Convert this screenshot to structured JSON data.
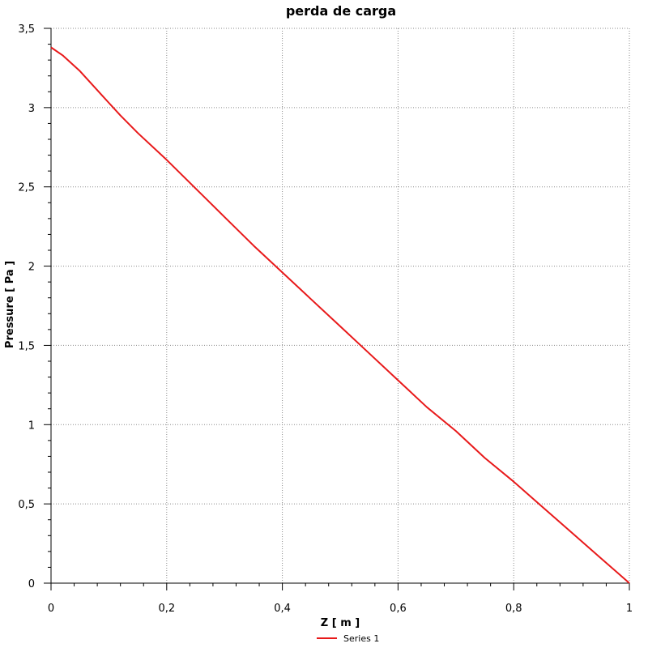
{
  "chart_data": {
    "type": "line",
    "title": "perda de carga",
    "xlabel": "Z [ m ]",
    "ylabel": "Pressure [ Pa ]",
    "xlim": [
      0,
      1
    ],
    "ylim": [
      0,
      3.5
    ],
    "xticks": [
      0,
      0.2,
      0.4,
      0.6,
      0.8,
      1
    ],
    "xtick_labels": [
      "0",
      "0,2",
      "0,4",
      "0,6",
      "0,8",
      "1"
    ],
    "yticks": [
      0,
      0.5,
      1,
      1.5,
      2,
      2.5,
      3,
      3.5
    ],
    "ytick_labels": [
      "0",
      "0,5",
      "1",
      "1,5",
      "2",
      "2,5",
      "3",
      "3,5"
    ],
    "grid": true,
    "legend_position": "bottom-center",
    "series": [
      {
        "name": "Series 1",
        "color": "#e8191a",
        "x": [
          0,
          0.02,
          0.05,
          0.08,
          0.1,
          0.12,
          0.15,
          0.2,
          0.25,
          0.3,
          0.35,
          0.4,
          0.45,
          0.5,
          0.55,
          0.6,
          0.65,
          0.7,
          0.75,
          0.8,
          0.85,
          0.9,
          0.95,
          1.0
        ],
        "y": [
          3.38,
          3.33,
          3.23,
          3.11,
          3.03,
          2.95,
          2.84,
          2.67,
          2.49,
          2.31,
          2.13,
          1.96,
          1.79,
          1.62,
          1.45,
          1.28,
          1.11,
          0.96,
          0.79,
          0.64,
          0.48,
          0.32,
          0.16,
          0.0
        ]
      }
    ]
  }
}
